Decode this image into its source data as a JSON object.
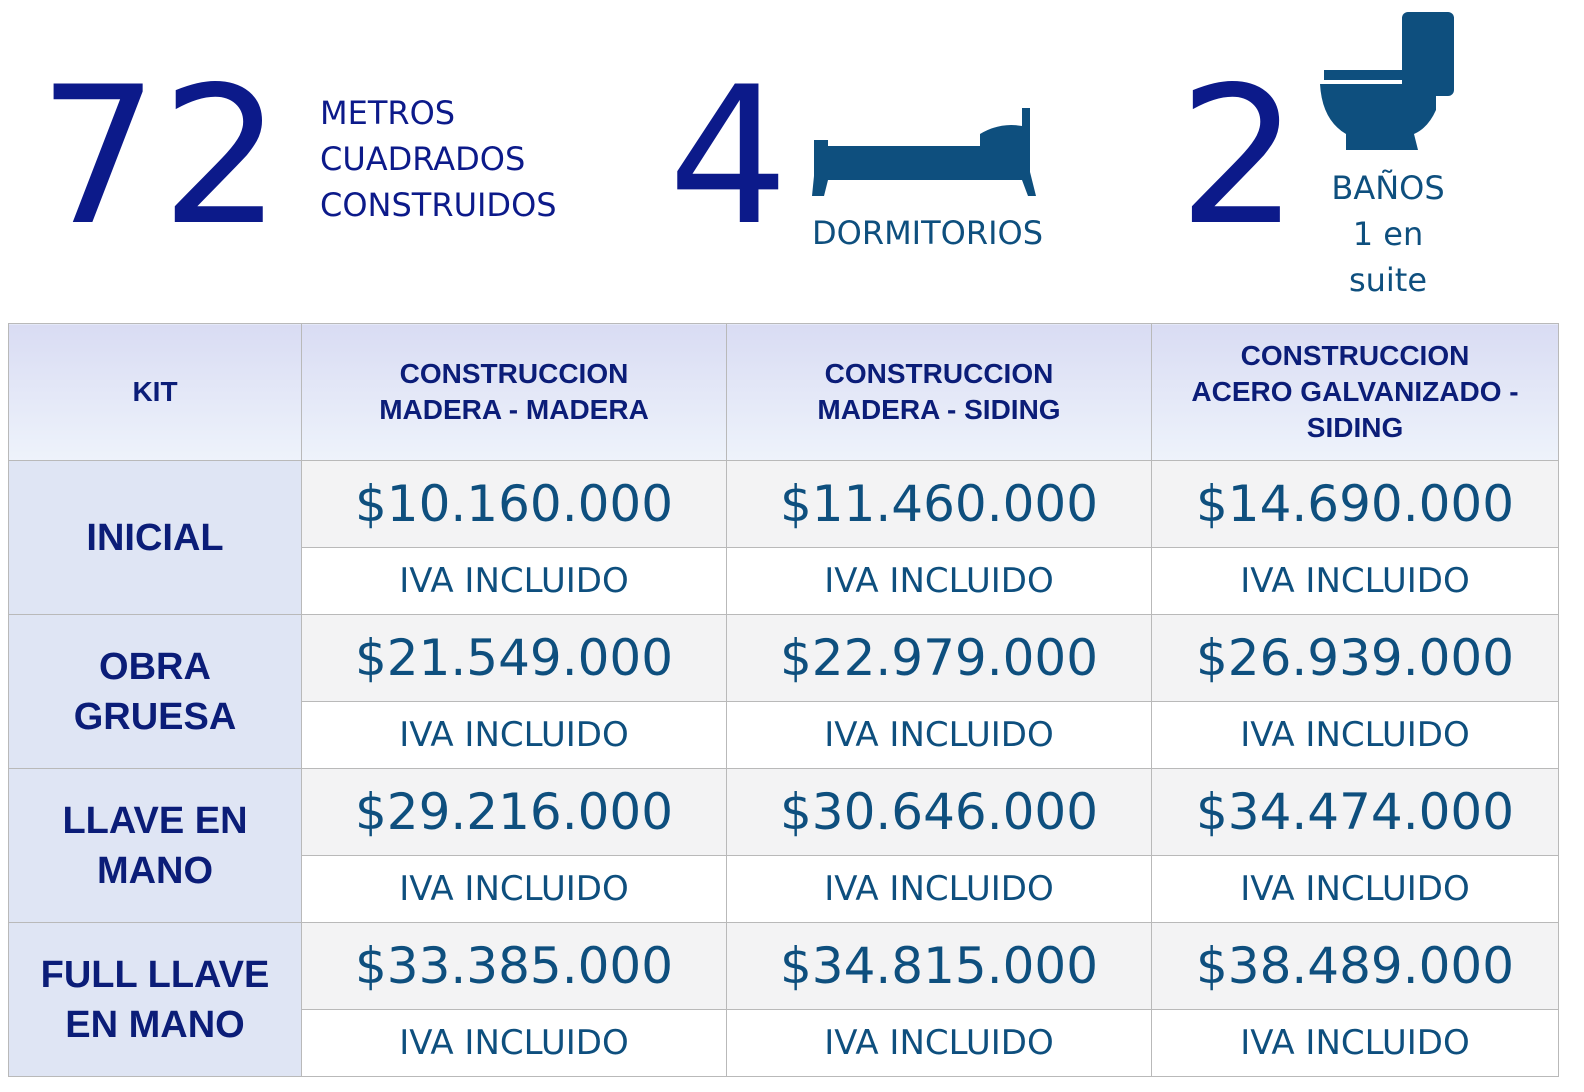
{
  "stats": {
    "area": {
      "value": "72",
      "label_lines": [
        "METROS",
        "CUADRADOS",
        "CONSTRUIDOS"
      ]
    },
    "bedrooms": {
      "value": "4",
      "label": "DORMITORIOS",
      "icon": "bed-icon"
    },
    "bathrooms": {
      "value": "2",
      "label_lines": [
        "BAÑOS",
        "1 en",
        "suite"
      ],
      "icon": "toilet-icon"
    }
  },
  "table": {
    "headers": [
      "KIT",
      "CONSTRUCCION\nMADERA - MADERA",
      "CONSTRUCCION\nMADERA - SIDING",
      "CONSTRUCCION\nACERO GALVANIZADO -\nSIDING"
    ],
    "rows": [
      {
        "kit": "INICIAL",
        "prices": [
          "$10.160.000",
          "$11.460.000",
          "$14.690.000"
        ],
        "notes": [
          "IVA INCLUIDO",
          "IVA INCLUIDO",
          "IVA INCLUIDO"
        ]
      },
      {
        "kit": "OBRA\nGRUESA",
        "prices": [
          "$21.549.000",
          "$22.979.000",
          "$26.939.000"
        ],
        "notes": [
          "IVA INCLUIDO",
          "IVA INCLUIDO",
          "IVA INCLUIDO"
        ]
      },
      {
        "kit": "LLAVE EN\nMANO",
        "prices": [
          "$29.216.000",
          "$30.646.000",
          "$34.474.000"
        ],
        "notes": [
          "IVA INCLUIDO",
          "IVA INCLUIDO",
          "IVA INCLUIDO"
        ]
      },
      {
        "kit": "FULL LLAVE\nEN MANO",
        "prices": [
          "$33.385.000",
          "$34.815.000",
          "$38.489.000"
        ],
        "notes": [
          "IVA INCLUIDO",
          "IVA INCLUIDO",
          "IVA INCLUIDO"
        ]
      }
    ]
  },
  "colors": {
    "number_navy": "#0c1a8a",
    "icon_blue": "#0e4f7e",
    "header_text": "#0b1d78",
    "price_text": "#0e4f7e"
  }
}
